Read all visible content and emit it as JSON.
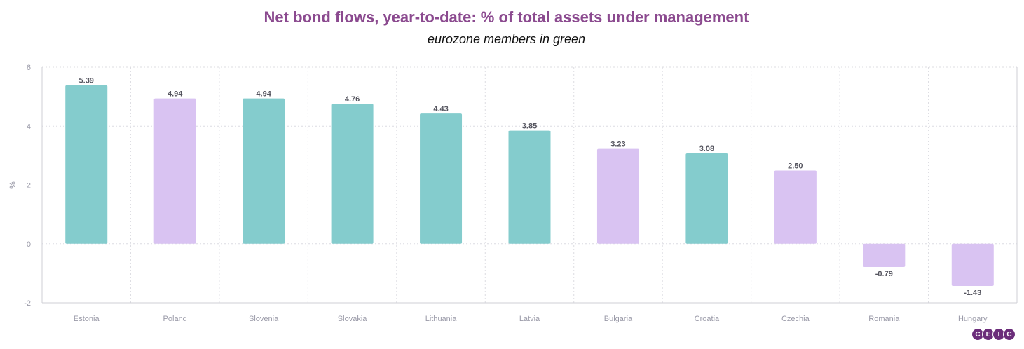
{
  "chart_data": {
    "type": "bar",
    "title": "Net bond flows, year-to-date: % of total assets under management",
    "subtitle": "eurozone members in green",
    "ylabel": "%",
    "xlabel": "",
    "ylim": [
      -2,
      6
    ],
    "yticks": [
      6,
      4,
      2,
      0,
      -2
    ],
    "grid": true,
    "categories": [
      "Estonia",
      "Poland",
      "Slovenia",
      "Slovakia",
      "Lithuania",
      "Latvia",
      "Bulgaria",
      "Croatia",
      "Czechia",
      "Romania",
      "Hungary"
    ],
    "values": [
      5.39,
      4.94,
      4.94,
      4.76,
      4.43,
      3.85,
      3.23,
      3.08,
      2.5,
      -0.79,
      -1.43
    ],
    "labels": [
      "5.39",
      "4.94",
      "4.94",
      "4.76",
      "4.43",
      "3.85",
      "3.23",
      "3.08",
      "2.50",
      "-0.79",
      "-1.43"
    ],
    "eurozone": [
      true,
      false,
      true,
      true,
      true,
      true,
      false,
      true,
      false,
      false,
      false
    ],
    "colors": {
      "eurozone": "#84cccd",
      "non_eurozone": "#d9c3f2"
    }
  },
  "logo": {
    "letters": [
      "C",
      "E",
      "I",
      "C"
    ]
  }
}
